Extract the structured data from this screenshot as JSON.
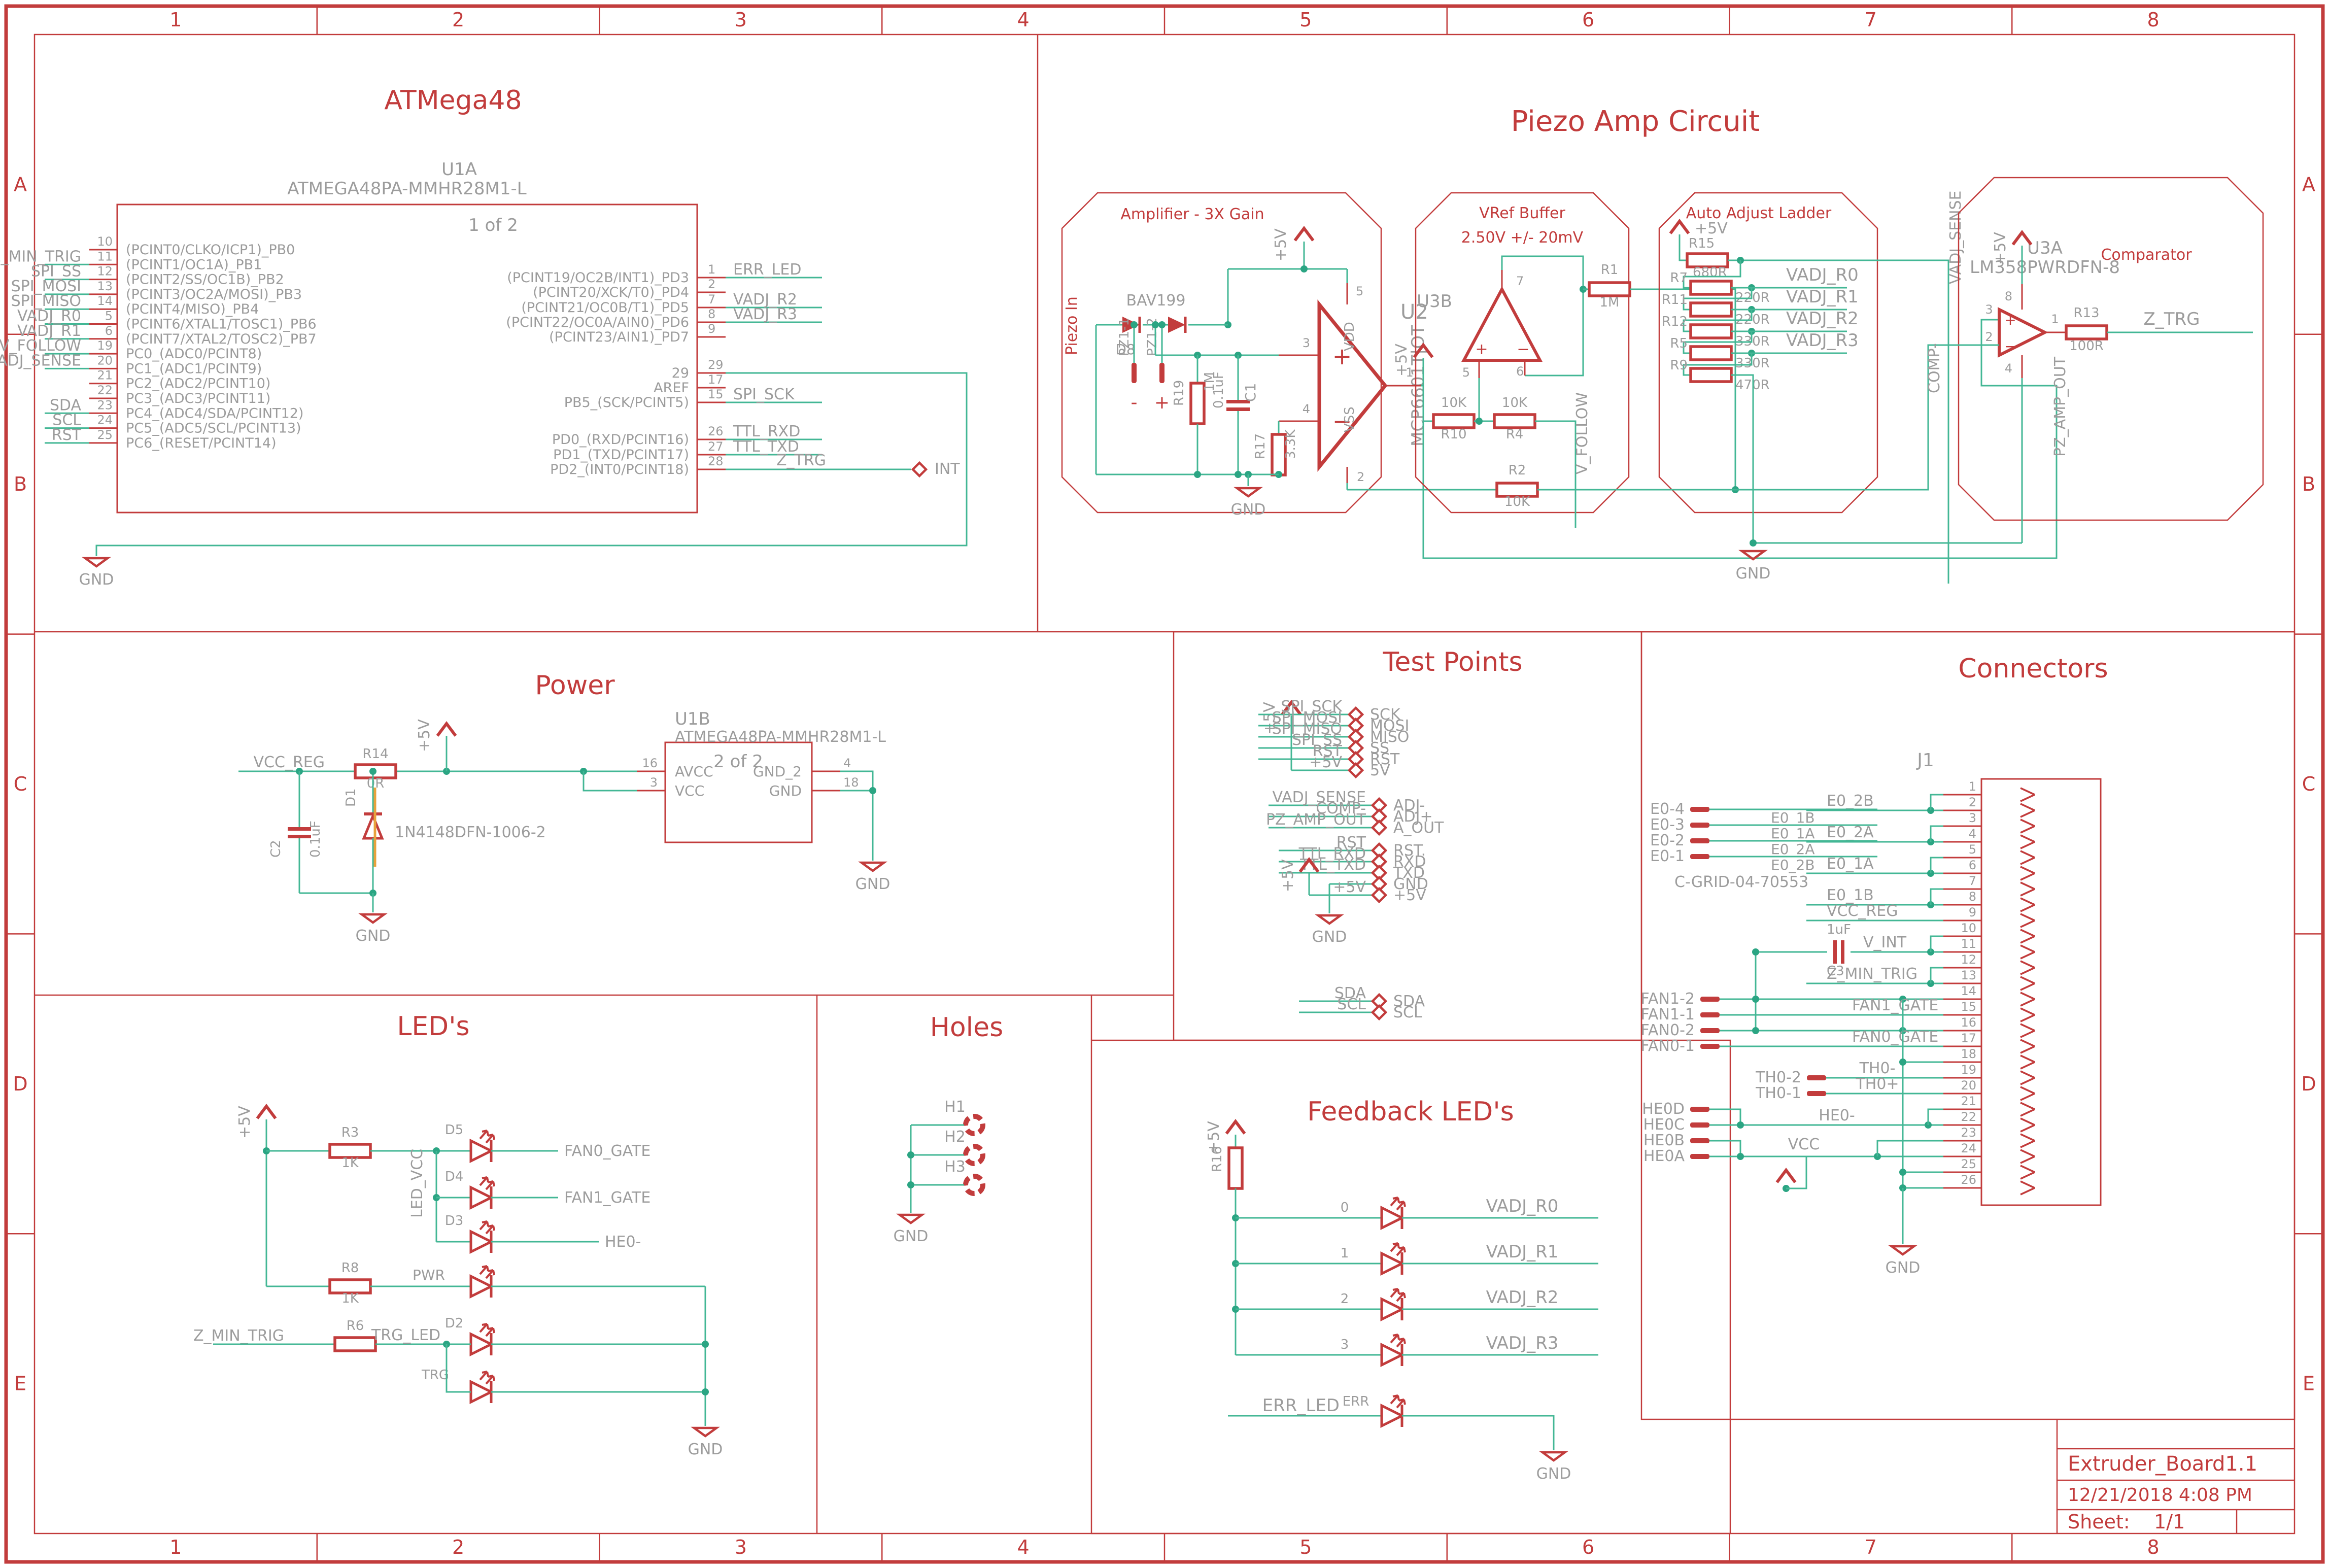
{
  "colors": {
    "red": "#c23c3c",
    "wire": "#43b795",
    "junction": "#2ba583",
    "grey": "#9c9c9c",
    "orange": "#e8a23c"
  },
  "frame": {
    "cols": [
      "1",
      "2",
      "3",
      "4",
      "5",
      "6",
      "7",
      "8"
    ],
    "rows": [
      "A",
      "B",
      "C",
      "D",
      "E"
    ]
  },
  "title_block": {
    "title": "Extruder_Board1.1",
    "date": "12/21/2018 4:08 PM",
    "sheet_label": "Sheet:",
    "sheet_value": "1/1"
  },
  "sections": {
    "atmega": "ATMega48",
    "piezo": "Piezo Amp Circuit",
    "power": "Power",
    "testpoints": "Test Points",
    "connectors": "Connectors",
    "leds": "LED's",
    "holes": "Holes",
    "feedback": "Feedback LED's"
  },
  "mcu": {
    "ref": "U1A",
    "part": "ATMEGA48PA-MMHR28M1-L",
    "page": "1 of 2",
    "gnd": "GND",
    "int_label": "INT",
    "left": [
      {
        "num": "10",
        "name": "(PCINT0/CLKO/ICP1)_PB0",
        "net": ""
      },
      {
        "num": "11",
        "name": "(PCINT1/OC1A)_PB1",
        "net": "Z_MIN_TRIG"
      },
      {
        "num": "12",
        "name": "(PCINT2/SS/OC1B)_PB2",
        "net": "SPI_SS"
      },
      {
        "num": "13",
        "name": "(PCINT3/OC2A/MOSI)_PB3",
        "net": "SPI_MOSI"
      },
      {
        "num": "14",
        "name": "(PCINT4/MISO)_PB4",
        "net": "SPI_MISO"
      },
      {
        "num": "5",
        "name": "(PCINT6/XTAL1/TOSC1)_PB6",
        "net": "VADJ_R0"
      },
      {
        "num": "6",
        "name": "(PCINT7/XTAL2/TOSC2)_PB7",
        "net": "VADJ_R1"
      },
      {
        "num": "19",
        "name": "PC0_(ADC0/PCINT8)",
        "net": "V_FOLLOW"
      },
      {
        "num": "20",
        "name": "PC1_(ADC1/PCINT9)",
        "net": "VADJ_SENSE"
      },
      {
        "num": "21",
        "name": "PC2_(ADC2/PCINT10)",
        "net": ""
      },
      {
        "num": "22",
        "name": "PC3_(ADC3/PCINT11)",
        "net": ""
      },
      {
        "num": "23",
        "name": "PC4_(ADC4/SDA/PCINT12)",
        "net": "SDA"
      },
      {
        "num": "24",
        "name": "PC5_(ADC5/SCL/PCINT13)",
        "net": "SCL"
      },
      {
        "num": "25",
        "name": "PC6_(RESET/PCINT14)",
        "net": "RST"
      }
    ],
    "right": [
      {
        "num": "1",
        "name": "(PCINT19/OC2B/INT1)_PD3",
        "net": "ERR_LED"
      },
      {
        "num": "2",
        "name": "(PCINT20/XCK/T0)_PD4",
        "net": ""
      },
      {
        "num": "7",
        "name": "(PCINT21/OC0B/T1)_PD5",
        "net": "VADJ_R2"
      },
      {
        "num": "8",
        "name": "(PCINT22/OC0A/AIN0)_PD6",
        "net": "VADJ_R3"
      },
      {
        "num": "9",
        "name": "(PCINT23/AIN1)_PD7",
        "net": ""
      },
      {
        "num": "29",
        "name": "29",
        "net": ""
      },
      {
        "num": "17",
        "name": "AREF",
        "net": ""
      },
      {
        "num": "15",
        "name": "PB5_(SCK/PCINT5)",
        "net": "SPI_SCK"
      },
      {
        "num": "26",
        "name": "PD0_(RXD/PCINT16)",
        "net": "TTL_RXD"
      },
      {
        "num": "27",
        "name": "PD1_(TXD/PCINT17)",
        "net": "TTL_TXD"
      },
      {
        "num": "28",
        "name": "PD2_(INT0/PCINT18)",
        "net": "Z_TRG"
      }
    ]
  },
  "amp": {
    "title": "Amplifier - 3X Gain",
    "piezo_in": "Piezo In",
    "p5v": "+5V",
    "gnd": "GND",
    "d8": {
      "ref": "D8",
      "part": "BAV199"
    },
    "pz1": {
      "a": "PZ1-1",
      "b": "PZ1-2",
      "minus": "-",
      "plus": "+"
    },
    "r19": {
      "ref": "R19",
      "val": "1M"
    },
    "c1": {
      "ref": "C1",
      "val": "0.1uF"
    },
    "r17": {
      "ref": "R17",
      "val": "3.3K"
    },
    "r2": {
      "ref": "R2",
      "val": "10K"
    },
    "u2": {
      "ref": "U2",
      "part": "MCP6601T|OT",
      "plus": "+",
      "minus": "−",
      "vdd": "VDD",
      "vss": "VSS",
      "p1": "1",
      "p2": "2",
      "p3": "3",
      "p4": "4",
      "p5": "5"
    }
  },
  "vref": {
    "title": "VRef Buffer",
    "subtitle": "2.50V +/- 20mV",
    "p5v": "+5V",
    "v_follow": "V_FOLLOW",
    "u3b": {
      "ref": "U3B",
      "p5": "5",
      "p6": "6",
      "p7": "7",
      "plus": "+",
      "minus": "−"
    },
    "r10": {
      "ref": "R10",
      "val": "10K"
    },
    "r4": {
      "ref": "R4",
      "val": "10K"
    },
    "r1": {
      "ref": "R1",
      "val": "1M"
    }
  },
  "ladder": {
    "title": "Auto Adjust Ladder",
    "p5v": "+5V",
    "gnd": "GND",
    "r15": {
      "ref": "R15",
      "val": "680R"
    },
    "r9": {
      "ref": "R9",
      "val": "470R"
    },
    "rows": [
      {
        "ref": "R7",
        "val": "220R",
        "net": "VADJ_R0"
      },
      {
        "ref": "R11",
        "val": "220R",
        "net": "VADJ_R1"
      },
      {
        "ref": "R12",
        "val": "330R",
        "net": "VADJ_R2"
      },
      {
        "ref": "R5",
        "val": "330R",
        "net": "VADJ_R3"
      }
    ]
  },
  "comparator": {
    "title": "Comparator",
    "p5v": "+5V",
    "z_trg": "Z_TRG",
    "vadj_sense": "VADJ_SENSE",
    "comp": "COMP-",
    "pz_amp_out": "PZ_AMP_OUT",
    "u3a": {
      "ref": "U3A",
      "part": "LM358PWRDFN-8",
      "p1": "1",
      "p2": "2",
      "p3": "3",
      "p4": "4",
      "p8": "8",
      "plus": "+",
      "minus": "−"
    },
    "r13": {
      "ref": "R13",
      "val": "100R"
    }
  },
  "power": {
    "vcc_reg": "VCC_REG",
    "p5v": "+5V",
    "gnd": "GND",
    "r14": {
      "ref": "R14",
      "val": "0R"
    },
    "c2": {
      "ref": "C2",
      "val": "0.1uF"
    },
    "d1": {
      "ref": "D1",
      "part": "1N4148DFN-1006-2"
    },
    "u1b": {
      "ref": "U1B",
      "part": "ATMEGA48PA-MMHR28M1-L",
      "page": "2 of 2",
      "avcc": "AVCC",
      "vcc": "VCC",
      "gnd2": "GND_2",
      "gnd": "GND",
      "p16": "16",
      "p3": "3",
      "p4": "4",
      "p18": "18"
    }
  },
  "testpoints": {
    "p5v": "+5V",
    "gnd": "GND",
    "g1": [
      {
        "net": "SPI_SCK",
        "name": "SCK"
      },
      {
        "net": "SPI_MOSI",
        "name": "MOSI"
      },
      {
        "net": "SPI_MISO",
        "name": "MISO"
      },
      {
        "net": "SPI_SS",
        "name": "SS"
      },
      {
        "net": "RST",
        "name": "RST"
      },
      {
        "net": "+5V",
        "name": "5V"
      }
    ],
    "g2": [
      {
        "net": "VADJ_SENSE",
        "name": "ADJ-"
      },
      {
        "net": "COMP-",
        "name": "ADJ+"
      },
      {
        "net": "PZ_AMP_OUT",
        "name": "A_OUT"
      }
    ],
    "g3": [
      {
        "net": "RST",
        "name": "RST."
      },
      {
        "net": "TTL_RXD",
        "name": "RXD"
      },
      {
        "net": "TTL_TXD",
        "name": "TXD"
      },
      {
        "net": "",
        "name": "GND"
      },
      {
        "net": "+5V",
        "name": "+5V"
      }
    ],
    "g4": [
      {
        "net": "SDA",
        "name": "SDA"
      },
      {
        "net": "SCL",
        "name": "SCL"
      }
    ]
  },
  "connector": {
    "ref": "J1",
    "part": "C-GRID-04-70553",
    "gnd": "GND",
    "vcc": "VCC",
    "pins": [
      "1",
      "2",
      "3",
      "4",
      "5",
      "6",
      "7",
      "8",
      "9",
      "10",
      "11",
      "12",
      "13",
      "14",
      "15",
      "16",
      "17",
      "18",
      "19",
      "20",
      "21",
      "22",
      "23",
      "24",
      "25",
      "26"
    ],
    "nets": [
      "",
      "E0_2B",
      "",
      "E0_2A",
      "",
      "E0_1A",
      "",
      "E0_1B",
      "VCC_REG",
      "",
      "V_INT",
      "",
      "Z_MIN_TRIG",
      "",
      "FAN1_GATE",
      "",
      "FAN0_GATE",
      "",
      "TH0-",
      "TH0+",
      "",
      "HE0-",
      "",
      "VCC",
      "",
      ""
    ],
    "e0_terms": [
      {
        "t": "E0-4",
        "mid": "E0_1B"
      },
      {
        "t": "E0-3",
        "mid": "E0_1A"
      },
      {
        "t": "E0-2",
        "mid": "E0_2A"
      },
      {
        "t": "E0-1",
        "mid": "E0_2B"
      }
    ],
    "fan_terms": [
      "FAN1-2",
      "FAN1-1",
      "FAN0-2",
      "FAN0-1"
    ],
    "th_terms": [
      "TH0-2",
      "TH0-1"
    ],
    "he_terms": [
      "HE0D",
      "HE0C",
      "HE0B",
      "HE0A"
    ],
    "c3": {
      "ref": "C3",
      "val": "1uF"
    }
  },
  "leds": {
    "p5v": "+5V",
    "gnd": "GND",
    "led_vcc": "LED_VCC",
    "z_min_trig": "Z_MIN_TRIG",
    "trg_led": "TRG_LED",
    "r3": {
      "ref": "R3",
      "val": "1K"
    },
    "r8": {
      "ref": "R8",
      "val": "1K"
    },
    "r6": {
      "ref": "R6"
    },
    "rows": [
      {
        "ref": "D5",
        "net": "FAN0_GATE"
      },
      {
        "ref": "D4",
        "net": "FAN1_GATE"
      },
      {
        "ref": "D3",
        "net": "HE0-"
      },
      {
        "ref": "PWR",
        "net": ""
      },
      {
        "ref": "D2",
        "net": ""
      },
      {
        "ref": "TRG",
        "net": ""
      }
    ]
  },
  "holes": {
    "items": [
      "H1",
      "H2",
      "H3"
    ],
    "gnd": "GND"
  },
  "feedback": {
    "p5v": "+5V",
    "gnd": "GND",
    "r16": "R16",
    "err_label": "ERR_LED",
    "err": "ERR",
    "rows": [
      {
        "num": "0",
        "net": "VADJ_R0"
      },
      {
        "num": "1",
        "net": "VADJ_R1"
      },
      {
        "num": "2",
        "net": "VADJ_R2"
      },
      {
        "num": "3",
        "net": "VADJ_R3"
      }
    ]
  }
}
